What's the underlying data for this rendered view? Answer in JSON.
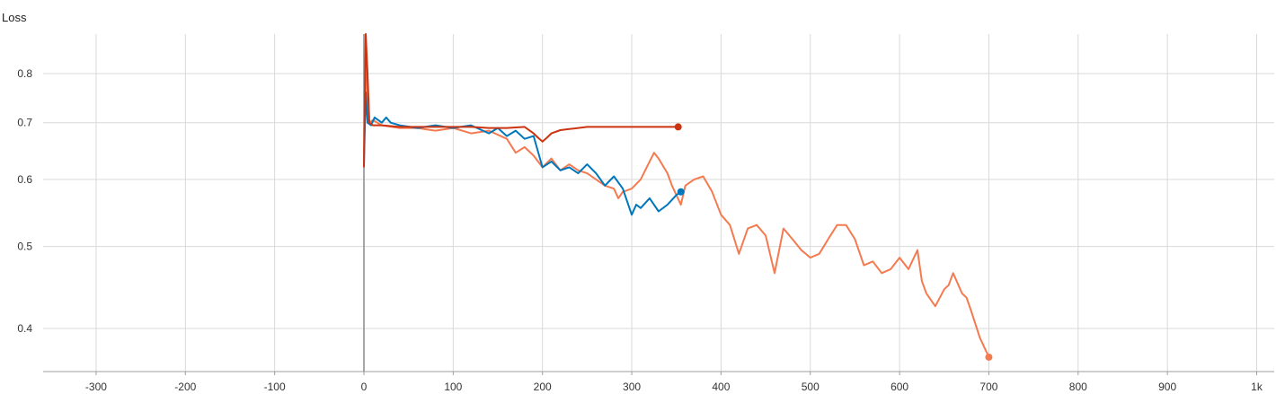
{
  "chart_data": {
    "type": "line",
    "title": "Loss",
    "xlabel": "",
    "ylabel": "",
    "y_scale": "log",
    "xlim": [
      -360,
      1020
    ],
    "ylim": [
      0.37,
      0.88
    ],
    "grid": true,
    "x_ticks": [
      {
        "value": -300,
        "label": "-300"
      },
      {
        "value": -200,
        "label": "-200"
      },
      {
        "value": -100,
        "label": "-100"
      },
      {
        "value": 0,
        "label": "0"
      },
      {
        "value": 100,
        "label": "100"
      },
      {
        "value": 200,
        "label": "200"
      },
      {
        "value": 300,
        "label": "300"
      },
      {
        "value": 400,
        "label": "400"
      },
      {
        "value": 500,
        "label": "500"
      },
      {
        "value": 600,
        "label": "600"
      },
      {
        "value": 700,
        "label": "700"
      },
      {
        "value": 800,
        "label": "800"
      },
      {
        "value": 900,
        "label": "900"
      },
      {
        "value": 1000,
        "label": "1k"
      }
    ],
    "y_ticks": [
      {
        "value": 0.4,
        "label": "0.4"
      },
      {
        "value": 0.5,
        "label": "0.5"
      },
      {
        "value": 0.6,
        "label": "0.6"
      },
      {
        "value": 0.7,
        "label": "0.7"
      },
      {
        "value": 0.8,
        "label": "0.8"
      }
    ],
    "series": [
      {
        "color": "#f47a50",
        "x": [
          0,
          2,
          4,
          6,
          10,
          20,
          40,
          60,
          80,
          100,
          120,
          140,
          160,
          170,
          180,
          190,
          200,
          210,
          220,
          230,
          240,
          250,
          260,
          270,
          280,
          285,
          290,
          300,
          310,
          320,
          325,
          330,
          340,
          345,
          350,
          355,
          360,
          365,
          370,
          380,
          390,
          400,
          410,
          420,
          430,
          440,
          450,
          460,
          470,
          480,
          490,
          500,
          510,
          520,
          530,
          540,
          550,
          560,
          570,
          580,
          590,
          600,
          610,
          620,
          625,
          630,
          640,
          650,
          655,
          660,
          670,
          675,
          680,
          690,
          700
        ],
        "y": [
          0.64,
          0.9,
          0.72,
          0.7,
          0.705,
          0.695,
          0.69,
          0.69,
          0.685,
          0.69,
          0.68,
          0.685,
          0.67,
          0.645,
          0.655,
          0.64,
          0.62,
          0.635,
          0.615,
          0.625,
          0.615,
          0.61,
          0.6,
          0.59,
          0.585,
          0.57,
          0.58,
          0.585,
          0.6,
          0.63,
          0.645,
          0.635,
          0.61,
          0.59,
          0.575,
          0.56,
          0.59,
          0.595,
          0.6,
          0.605,
          0.58,
          0.545,
          0.53,
          0.49,
          0.525,
          0.53,
          0.515,
          0.465,
          0.525,
          0.51,
          0.495,
          0.485,
          0.49,
          0.51,
          0.53,
          0.53,
          0.51,
          0.475,
          0.48,
          0.465,
          0.47,
          0.485,
          0.47,
          0.495,
          0.455,
          0.44,
          0.425,
          0.445,
          0.45,
          0.465,
          0.44,
          0.435,
          0.42,
          0.39,
          0.37
        ]
      },
      {
        "color": "#0077bb",
        "x": [
          0,
          2,
          4,
          8,
          12,
          20,
          25,
          30,
          40,
          60,
          80,
          100,
          120,
          140,
          150,
          160,
          170,
          180,
          190,
          200,
          210,
          220,
          230,
          240,
          250,
          260,
          270,
          280,
          290,
          300,
          305,
          310,
          320,
          330,
          340,
          350,
          355
        ],
        "y": [
          0.625,
          0.76,
          0.7,
          0.695,
          0.71,
          0.7,
          0.71,
          0.7,
          0.695,
          0.69,
          0.695,
          0.69,
          0.695,
          0.68,
          0.69,
          0.675,
          0.685,
          0.67,
          0.675,
          0.62,
          0.63,
          0.615,
          0.62,
          0.61,
          0.625,
          0.61,
          0.59,
          0.605,
          0.585,
          0.545,
          0.56,
          0.555,
          0.57,
          0.55,
          0.56,
          0.575,
          0.58
        ]
      },
      {
        "color": "#cc3311",
        "x": [
          0,
          2,
          4,
          6,
          10,
          20,
          40,
          60,
          80,
          100,
          120,
          140,
          160,
          180,
          190,
          195,
          200,
          205,
          210,
          220,
          230,
          240,
          250,
          260,
          280,
          300,
          320,
          340,
          352
        ],
        "y": [
          0.62,
          1.05,
          0.8,
          0.7,
          0.695,
          0.695,
          0.692,
          0.692,
          0.692,
          0.692,
          0.692,
          0.69,
          0.69,
          0.692,
          0.68,
          0.672,
          0.665,
          0.672,
          0.68,
          0.686,
          0.688,
          0.69,
          0.692,
          0.692,
          0.692,
          0.692,
          0.692,
          0.692,
          0.692
        ]
      }
    ]
  }
}
